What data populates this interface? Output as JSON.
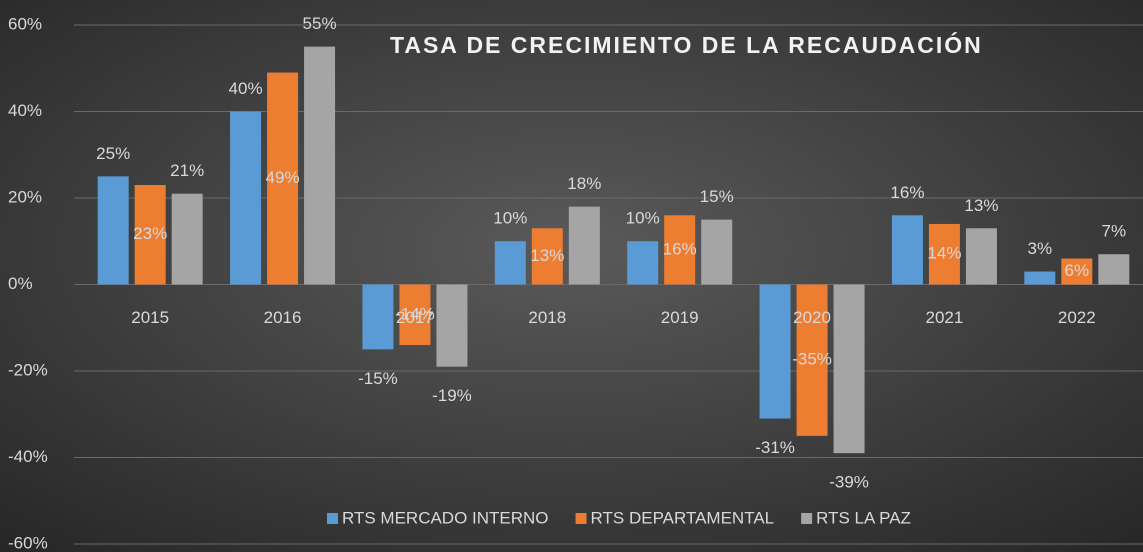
{
  "chart_data": {
    "type": "bar",
    "title": "TASA DE CRECIMIENTO DE LA RECAUDACIÓN",
    "categories": [
      "2015",
      "2016",
      "2017",
      "2018",
      "2019",
      "2020",
      "2021",
      "2022"
    ],
    "series": [
      {
        "name": "RTS MERCADO INTERNO",
        "color": "#5b9bd5",
        "values": [
          25,
          40,
          -15,
          10,
          10,
          -31,
          16,
          3
        ],
        "value_labels": [
          "25%",
          "40%",
          "-15%",
          "10%",
          "10%",
          "-31%",
          "16%",
          "3%"
        ]
      },
      {
        "name": "RTS DEPARTAMENTAL",
        "color": "#ed7d31",
        "values": [
          23,
          49,
          -14,
          13,
          16,
          -35,
          14,
          6
        ],
        "value_labels": [
          "23%",
          "49%",
          "-14%",
          "13%",
          "16%",
          "-35%",
          "14%",
          "6%"
        ]
      },
      {
        "name": "RTS LA PAZ",
        "color": "#a5a5a5",
        "values": [
          21,
          55,
          -19,
          18,
          15,
          -39,
          13,
          7
        ],
        "value_labels": [
          "21%",
          "55%",
          "-19%",
          "18%",
          "15%",
          "-39%",
          "13%",
          "7%"
        ]
      }
    ],
    "ylim": [
      -60,
      60
    ],
    "yticks": [
      {
        "value": -60,
        "label": "-60%"
      },
      {
        "value": -40,
        "label": "-40%"
      },
      {
        "value": -20,
        "label": "-20%"
      },
      {
        "value": 0,
        "label": "0%"
      },
      {
        "value": 20,
        "label": "20%"
      },
      {
        "value": 40,
        "label": "40%"
      },
      {
        "value": 60,
        "label": "60%"
      }
    ],
    "grid": true,
    "legend": "bottom"
  }
}
